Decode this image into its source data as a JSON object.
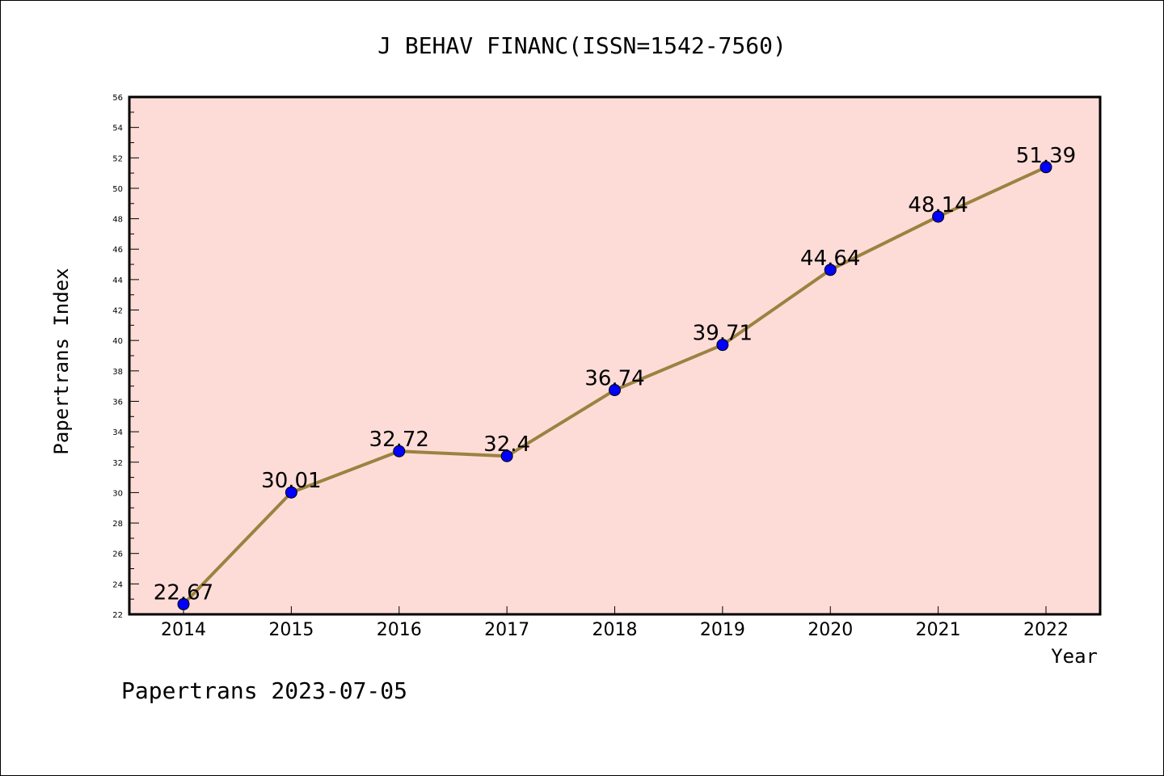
{
  "chart_data": {
    "type": "line",
    "title": "J BEHAV FINANC(ISSN=1542-7560)",
    "xlabel": "Year",
    "ylabel": "Papertrans Index",
    "categories": [
      "2014",
      "2015",
      "2016",
      "2017",
      "2018",
      "2019",
      "2020",
      "2021",
      "2022"
    ],
    "values": [
      22.67,
      30.01,
      32.72,
      32.4,
      36.74,
      39.71,
      44.64,
      48.14,
      51.39
    ],
    "labels": [
      "22.67",
      "30.01",
      "32.72",
      "32.4",
      "36.74",
      "39.71",
      "44.64",
      "48.14",
      "51.39"
    ],
    "ylim": [
      22,
      56
    ],
    "yticks": [
      22,
      24,
      26,
      28,
      30,
      32,
      34,
      36,
      38,
      40,
      42,
      44,
      46,
      48,
      50,
      52,
      54,
      56
    ],
    "grid": false,
    "colors": {
      "background": "#fddcd8",
      "line": "#9b8240",
      "marker": "#0000ff"
    }
  },
  "footer": "Papertrans 2023-07-05"
}
